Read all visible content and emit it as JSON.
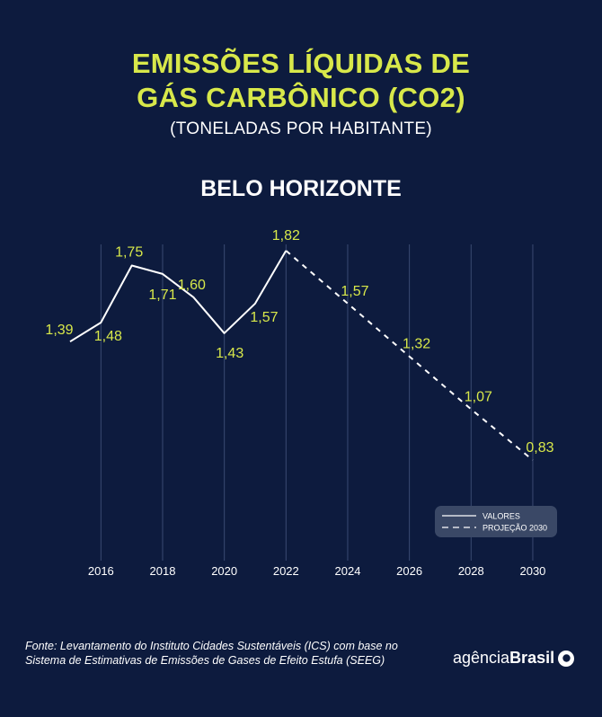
{
  "title": {
    "line1": "EMISSÕES LÍQUIDAS DE",
    "line2": "GÁS CARBÔNICO (CO2)"
  },
  "subtitle": "(TONELADAS POR HABITANTE)",
  "city": "BELO HORIZONTE",
  "footer": "Fonte: Levantamento do Instituto Cidades Sustentáveis (ICS) com base no Sistema de Estimativas de Emissões de Gases de Efeito Estufa (SEEG)",
  "logo": {
    "regular": "agência",
    "bold": "Brasil"
  },
  "colors": {
    "background": "#0d1b3e",
    "accent": "#d8e84a",
    "line": "#ffffff"
  },
  "chart_data": {
    "type": "line",
    "x_ticks": [
      "2016",
      "2018",
      "2020",
      "2022",
      "2024",
      "2026",
      "2028",
      "2030"
    ],
    "xlim": [
      2015,
      2030
    ],
    "ylim": [
      0.55,
      1.85
    ],
    "grid": "vertical",
    "legend_position": "bottom-right",
    "series": [
      {
        "name": "VALORES",
        "style": "solid",
        "points": [
          {
            "x": 2015,
            "y": 1.39,
            "label": "1,39"
          },
          {
            "x": 2016,
            "y": 1.48,
            "label": "1,48"
          },
          {
            "x": 2017,
            "y": 1.75,
            "label": "1,75"
          },
          {
            "x": 2018,
            "y": 1.71,
            "label": "1,71"
          },
          {
            "x": 2019,
            "y": 1.6,
            "label": "1,60"
          },
          {
            "x": 2020,
            "y": 1.43,
            "label": "1,43"
          },
          {
            "x": 2021,
            "y": 1.57,
            "label": "1,57"
          },
          {
            "x": 2022,
            "y": 1.82,
            "label": "1,82"
          }
        ]
      },
      {
        "name": "PROJEÇÃO 2030",
        "style": "dashed",
        "points": [
          {
            "x": 2022,
            "y": 1.82,
            "label": ""
          },
          {
            "x": 2024,
            "y": 1.57,
            "label": "1,57"
          },
          {
            "x": 2026,
            "y": 1.32,
            "label": "1,32"
          },
          {
            "x": 2028,
            "y": 1.07,
            "label": "1,07"
          },
          {
            "x": 2030,
            "y": 0.83,
            "label": "0,83"
          }
        ]
      }
    ]
  }
}
